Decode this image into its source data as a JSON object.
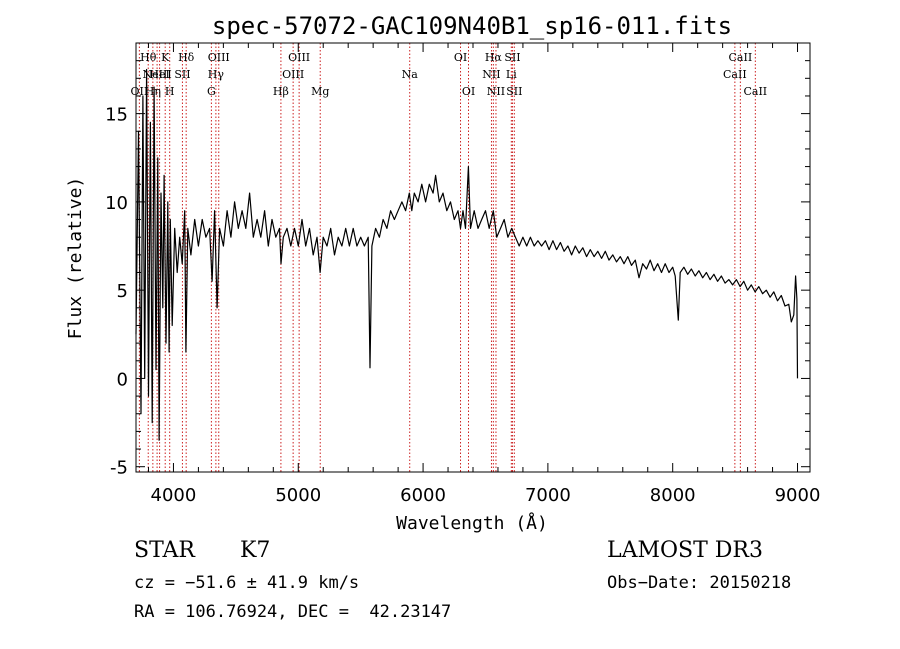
{
  "chart_data": {
    "type": "line",
    "title": "spec-57072-GAC109N40B1_sp16-011.fits",
    "xlabel": "Wavelength (Å)",
    "ylabel": "Flux (relative)",
    "xlim": [
      3700,
      9100
    ],
    "ylim": [
      -5.3,
      19.0
    ],
    "x_ticks": [
      4000,
      5000,
      6000,
      7000,
      8000,
      9000
    ],
    "y_ticks": [
      -5,
      0,
      5,
      10,
      15
    ],
    "x_tick_labels": [
      "4000",
      "5000",
      "6000",
      "7000",
      "8000",
      "9000"
    ],
    "y_tick_labels": [
      "-5",
      "0",
      "5",
      "10",
      "15"
    ],
    "grid": false,
    "line_color": "#000000",
    "marker_color": "#cc2222",
    "series": [
      {
        "points": [
          [
            3700,
            2.5
          ],
          [
            3720,
            14.0
          ],
          [
            3740,
            -2.0
          ],
          [
            3755,
            16.0
          ],
          [
            3770,
            0.0
          ],
          [
            3785,
            17.5
          ],
          [
            3800,
            -1.0
          ],
          [
            3815,
            14.5
          ],
          [
            3830,
            -2.5
          ],
          [
            3845,
            16.5
          ],
          [
            3860,
            0.5
          ],
          [
            3875,
            12.5
          ],
          [
            3885,
            -3.5
          ],
          [
            3900,
            10.5
          ],
          [
            3915,
            4.0
          ],
          [
            3925,
            11.5
          ],
          [
            3940,
            2.0
          ],
          [
            3955,
            10.0
          ],
          [
            3965,
            1.5
          ],
          [
            3975,
            9.0
          ],
          [
            3990,
            3.0
          ],
          [
            4010,
            8.5
          ],
          [
            4030,
            6.0
          ],
          [
            4050,
            8.0
          ],
          [
            4070,
            6.5
          ],
          [
            4090,
            9.5
          ],
          [
            4100,
            1.5
          ],
          [
            4115,
            8.5
          ],
          [
            4140,
            7.0
          ],
          [
            4170,
            9.0
          ],
          [
            4200,
            7.5
          ],
          [
            4230,
            9.0
          ],
          [
            4260,
            8.0
          ],
          [
            4290,
            8.5
          ],
          [
            4310,
            5.5
          ],
          [
            4330,
            9.5
          ],
          [
            4350,
            4.0
          ],
          [
            4370,
            8.5
          ],
          [
            4400,
            7.5
          ],
          [
            4430,
            9.5
          ],
          [
            4460,
            8.0
          ],
          [
            4490,
            10.0
          ],
          [
            4520,
            8.5
          ],
          [
            4550,
            9.5
          ],
          [
            4580,
            8.5
          ],
          [
            4610,
            10.5
          ],
          [
            4640,
            8.0
          ],
          [
            4670,
            9.0
          ],
          [
            4700,
            8.0
          ],
          [
            4730,
            9.5
          ],
          [
            4760,
            7.5
          ],
          [
            4790,
            9.0
          ],
          [
            4820,
            8.0
          ],
          [
            4850,
            8.5
          ],
          [
            4862,
            6.5
          ],
          [
            4880,
            8.0
          ],
          [
            4910,
            8.5
          ],
          [
            4940,
            7.5
          ],
          [
            4970,
            8.5
          ],
          [
            5000,
            7.5
          ],
          [
            5030,
            9.0
          ],
          [
            5060,
            7.5
          ],
          [
            5090,
            8.5
          ],
          [
            5120,
            7.0
          ],
          [
            5150,
            8.0
          ],
          [
            5175,
            6.0
          ],
          [
            5200,
            8.0
          ],
          [
            5230,
            7.5
          ],
          [
            5260,
            8.5
          ],
          [
            5290,
            7.0
          ],
          [
            5320,
            8.0
          ],
          [
            5350,
            7.5
          ],
          [
            5380,
            8.5
          ],
          [
            5410,
            7.5
          ],
          [
            5440,
            8.5
          ],
          [
            5470,
            7.5
          ],
          [
            5500,
            8.0
          ],
          [
            5530,
            7.5
          ],
          [
            5560,
            8.0
          ],
          [
            5575,
            0.6
          ],
          [
            5590,
            7.5
          ],
          [
            5620,
            8.5
          ],
          [
            5650,
            8.0
          ],
          [
            5680,
            9.0
          ],
          [
            5710,
            8.5
          ],
          [
            5740,
            9.5
          ],
          [
            5770,
            9.0
          ],
          [
            5800,
            9.5
          ],
          [
            5830,
            10.0
          ],
          [
            5860,
            9.5
          ],
          [
            5890,
            10.5
          ],
          [
            5910,
            9.5
          ],
          [
            5930,
            10.5
          ],
          [
            5960,
            10.0
          ],
          [
            5990,
            11.0
          ],
          [
            6020,
            10.0
          ],
          [
            6050,
            11.0
          ],
          [
            6080,
            10.5
          ],
          [
            6100,
            11.5
          ],
          [
            6130,
            10.0
          ],
          [
            6160,
            10.5
          ],
          [
            6190,
            9.5
          ],
          [
            6220,
            10.0
          ],
          [
            6250,
            9.0
          ],
          [
            6280,
            9.5
          ],
          [
            6300,
            8.5
          ],
          [
            6320,
            9.5
          ],
          [
            6340,
            8.5
          ],
          [
            6363,
            12.0
          ],
          [
            6380,
            8.5
          ],
          [
            6410,
            9.5
          ],
          [
            6440,
            8.5
          ],
          [
            6470,
            9.0
          ],
          [
            6500,
            9.5
          ],
          [
            6530,
            8.5
          ],
          [
            6563,
            9.5
          ],
          [
            6590,
            8.0
          ],
          [
            6620,
            8.5
          ],
          [
            6650,
            9.0
          ],
          [
            6680,
            8.0
          ],
          [
            6710,
            8.5
          ],
          [
            6740,
            8.0
          ],
          [
            6770,
            7.5
          ],
          [
            6800,
            8.0
          ],
          [
            6830,
            7.5
          ],
          [
            6860,
            8.0
          ],
          [
            6890,
            7.5
          ],
          [
            6920,
            7.8
          ],
          [
            6950,
            7.5
          ],
          [
            6980,
            7.8
          ],
          [
            7010,
            7.3
          ],
          [
            7040,
            7.8
          ],
          [
            7070,
            7.3
          ],
          [
            7100,
            7.7
          ],
          [
            7130,
            7.2
          ],
          [
            7160,
            7.5
          ],
          [
            7190,
            7.0
          ],
          [
            7220,
            7.5
          ],
          [
            7250,
            7.1
          ],
          [
            7280,
            7.4
          ],
          [
            7310,
            6.9
          ],
          [
            7340,
            7.3
          ],
          [
            7370,
            6.9
          ],
          [
            7400,
            7.2
          ],
          [
            7430,
            6.8
          ],
          [
            7460,
            7.2
          ],
          [
            7490,
            6.7
          ],
          [
            7520,
            7.0
          ],
          [
            7550,
            6.6
          ],
          [
            7580,
            6.9
          ],
          [
            7610,
            6.5
          ],
          [
            7640,
            6.9
          ],
          [
            7670,
            6.4
          ],
          [
            7700,
            6.7
          ],
          [
            7730,
            5.7
          ],
          [
            7760,
            6.5
          ],
          [
            7790,
            6.2
          ],
          [
            7820,
            6.7
          ],
          [
            7850,
            6.1
          ],
          [
            7880,
            6.5
          ],
          [
            7910,
            6.0
          ],
          [
            7940,
            6.5
          ],
          [
            7970,
            6.0
          ],
          [
            8000,
            6.3
          ],
          [
            8020,
            5.8
          ],
          [
            8045,
            3.3
          ],
          [
            8060,
            6.0
          ],
          [
            8090,
            6.3
          ],
          [
            8120,
            5.9
          ],
          [
            8150,
            6.2
          ],
          [
            8180,
            5.8
          ],
          [
            8210,
            6.1
          ],
          [
            8240,
            5.7
          ],
          [
            8270,
            6.0
          ],
          [
            8300,
            5.6
          ],
          [
            8330,
            5.9
          ],
          [
            8360,
            5.5
          ],
          [
            8390,
            5.8
          ],
          [
            8420,
            5.4
          ],
          [
            8450,
            5.6
          ],
          [
            8480,
            5.3
          ],
          [
            8510,
            5.6
          ],
          [
            8540,
            5.2
          ],
          [
            8570,
            5.5
          ],
          [
            8600,
            5.0
          ],
          [
            8630,
            5.3
          ],
          [
            8660,
            4.9
          ],
          [
            8690,
            5.2
          ],
          [
            8720,
            4.8
          ],
          [
            8750,
            5.0
          ],
          [
            8780,
            4.6
          ],
          [
            8810,
            4.9
          ],
          [
            8840,
            4.4
          ],
          [
            8870,
            4.7
          ],
          [
            8900,
            4.1
          ],
          [
            8930,
            4.2
          ],
          [
            8950,
            3.2
          ],
          [
            8970,
            3.6
          ],
          [
            8985,
            5.8
          ],
          [
            8995,
            4.5
          ],
          [
            9000,
            0.0
          ]
        ]
      }
    ],
    "lines": [
      {
        "x": 3727,
        "label": "OII",
        "row": 2
      },
      {
        "x": 3798,
        "label": "Hθ",
        "row": 0
      },
      {
        "x": 3835,
        "label": "Hη",
        "row": 2
      },
      {
        "x": 3869,
        "label": "NeIII",
        "row": 1
      },
      {
        "x": 3889,
        "label": "HeI",
        "row": 1
      },
      {
        "x": 3934,
        "label": "K",
        "row": 0
      },
      {
        "x": 3970,
        "label": "H",
        "row": 2
      },
      {
        "x": 4072,
        "label": "SII",
        "row": 1
      },
      {
        "x": 4102,
        "label": "Hδ",
        "row": 0
      },
      {
        "x": 4304,
        "label": "G",
        "row": 2
      },
      {
        "x": 4340,
        "label": "Hγ",
        "row": 1
      },
      {
        "x": 4363,
        "label": "OIII",
        "row": 0
      },
      {
        "x": 4861,
        "label": "Hβ",
        "row": 2
      },
      {
        "x": 4959,
        "label": "OIII",
        "row": 1
      },
      {
        "x": 5007,
        "label": "OIII",
        "row": 0
      },
      {
        "x": 5176,
        "label": "Mg",
        "row": 2
      },
      {
        "x": 5893,
        "label": "Na",
        "row": 1
      },
      {
        "x": 6300,
        "label": "OI",
        "row": 0
      },
      {
        "x": 6364,
        "label": "OI",
        "row": 2
      },
      {
        "x": 6548,
        "label": "NII",
        "row": 1
      },
      {
        "x": 6563,
        "label": "Hα",
        "row": 0
      },
      {
        "x": 6584,
        "label": "NII",
        "row": 2
      },
      {
        "x": 6707,
        "label": "Li",
        "row": 1
      },
      {
        "x": 6716,
        "label": "SII",
        "row": 0
      },
      {
        "x": 6731,
        "label": "SII",
        "row": 2
      },
      {
        "x": 8498,
        "label": "CaII",
        "row": 1
      },
      {
        "x": 8542,
        "label": "CaII",
        "row": 0
      },
      {
        "x": 8662,
        "label": "CaII",
        "row": 2
      }
    ]
  },
  "info": {
    "class_label": "STAR",
    "subclass": "K7",
    "survey": "LAMOST DR3",
    "redshift": "cz = −51.6 ± 41.9 km/s",
    "obs_date": "Obs−Date: 20150218",
    "coords": "RA = 106.76924, DEC =  42.23147"
  }
}
